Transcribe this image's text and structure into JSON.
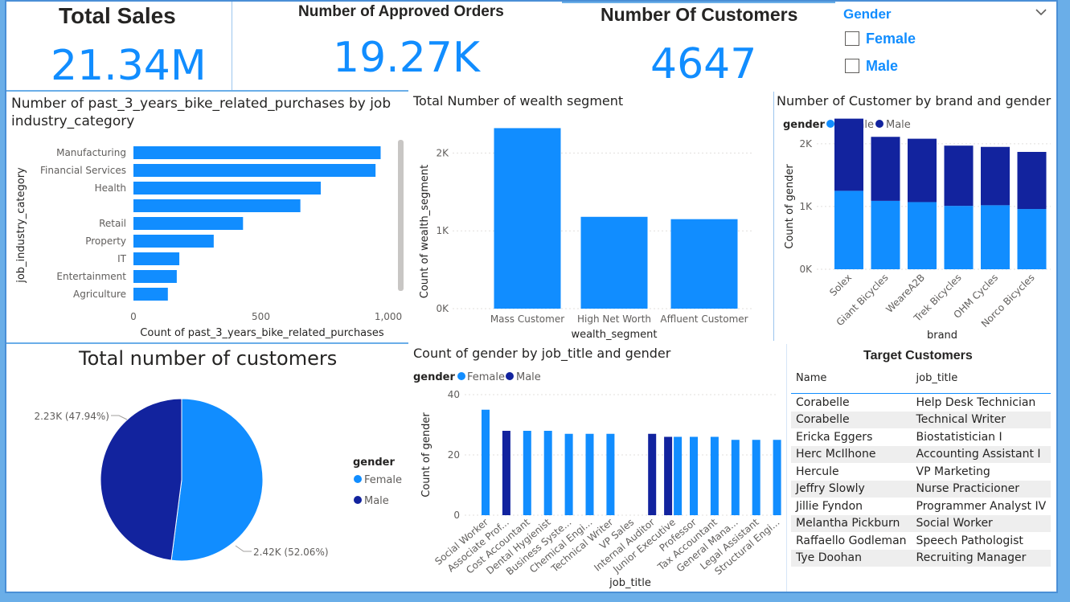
{
  "kpis": {
    "total_sales": {
      "title": "Total Sales",
      "value": "21.34M"
    },
    "approved_orders": {
      "title": "Number of Approved Orders",
      "value": "19.27K"
    },
    "customers": {
      "title": "Number Of Customers",
      "value": "4647"
    }
  },
  "slicer": {
    "title": "Gender",
    "options": [
      "Female",
      "Male"
    ],
    "selected": [],
    "chevron_icon": "chevron-down-icon"
  },
  "colors": {
    "female": "#118dff",
    "male": "#12239e",
    "accent": "#118dff"
  },
  "charts": {
    "industry": {
      "title": "Number of past_3_years_bike_related_purchases by job industry_category"
    },
    "wealth": {
      "title": "Total Number of wealth segment"
    },
    "brand": {
      "title": "Number of Customer by brand and gender",
      "legend_title": "gender"
    },
    "pie": {
      "title": "Total number of customers",
      "legend_title": "gender"
    },
    "jobtitle": {
      "title": "Count of gender by job_title and gender",
      "legend_title": "gender"
    }
  },
  "chart_data": [
    {
      "type": "bar",
      "orientation": "horizontal",
      "title": "Number of past_3_years_bike_related_purchases by job industry_category",
      "categories": [
        "Manufacturing",
        "Financial Services",
        "Health",
        "",
        "Retail",
        "Property",
        "IT",
        "Entertainment",
        "Agriculture"
      ],
      "values": [
        970,
        950,
        735,
        655,
        430,
        315,
        180,
        170,
        135
      ],
      "xlabel": "Count of past_3_years_bike_related_purchases",
      "ylabel": "job_industry_category",
      "xlim": [
        0,
        1000
      ],
      "xticks": [
        "0",
        "500",
        "1,000"
      ],
      "grid": false
    },
    {
      "type": "bar",
      "title": "Total Number of wealth segment",
      "categories": [
        "Mass Customer",
        "High Net Worth",
        "Affluent Customer"
      ],
      "values": [
        2320,
        1180,
        1150
      ],
      "xlabel": "wealth_segment",
      "ylabel": "Count of wealth_segment",
      "ylim": [
        0,
        2500
      ],
      "yticks": [
        "0K",
        "1K",
        "2K"
      ],
      "grid": true
    },
    {
      "type": "bar",
      "stacked": true,
      "title": "Number of Customer by brand and gender",
      "categories": [
        "Solex",
        "Giant Bicycles",
        "WeareA2B",
        "Trek Bicycles",
        "OHM Cycles",
        "Norco Bicycles"
      ],
      "series": [
        {
          "name": "Female",
          "values": [
            1250,
            1090,
            1070,
            1010,
            1020,
            960
          ]
        },
        {
          "name": "Male",
          "values": [
            1150,
            1020,
            1010,
            960,
            930,
            910
          ]
        }
      ],
      "xlabel": "brand",
      "ylabel": "Count of gender",
      "ylim": [
        0,
        2600
      ],
      "yticks": [
        "0K",
        "1K",
        "2K"
      ],
      "legend": "top-left",
      "grid": true
    },
    {
      "type": "pie",
      "title": "Total number of customers",
      "series": [
        {
          "name": "Female",
          "value": 2420,
          "label": "2.42K (52.06%)"
        },
        {
          "name": "Male",
          "value": 2230,
          "label": "2.23K (47.94%)"
        }
      ],
      "legend": "right"
    },
    {
      "type": "bar",
      "title": "Count of gender by job_title and gender",
      "categories": [
        "Social Worker",
        "Associate Prof...",
        "Cost Accountant",
        "Dental Hygienist",
        "Business Syste...",
        "Chemical Engi...",
        "Technical Writer",
        "VP Sales",
        "Internal Auditor",
        "Junior Executive",
        "Professor",
        "Tax Accountant",
        "General Mana...",
        "Legal Assistant",
        "Structural Engi..."
      ],
      "series": [
        {
          "name": "Female",
          "values": [
            35,
            0,
            28,
            28,
            27,
            27,
            27,
            0,
            0,
            26,
            26,
            26,
            25,
            25,
            25
          ]
        },
        {
          "name": "Male",
          "values": [
            0,
            28,
            0,
            0,
            0,
            0,
            0,
            0,
            27,
            26,
            0,
            0,
            0,
            0,
            0
          ]
        }
      ],
      "xlabel": "job_title",
      "ylabel": "Count of gender",
      "ylim": [
        0,
        40
      ],
      "yticks": [
        "0",
        "20",
        "40"
      ],
      "legend": "top-left",
      "grid": true
    },
    {
      "type": "table",
      "title": "Target Customers",
      "columns": [
        "Name",
        "job_title"
      ],
      "rows": [
        [
          "Corabelle",
          "Help Desk Technician"
        ],
        [
          "Corabelle",
          "Technical Writer"
        ],
        [
          "Ericka Eggers",
          "Biostatistician I"
        ],
        [
          "Herc McIlhone",
          "Accounting Assistant I"
        ],
        [
          "Hercule",
          "VP Marketing"
        ],
        [
          "Jeffry Slowly",
          "Nurse Practicioner"
        ],
        [
          "Jillie Fyndon",
          "Programmer Analyst IV"
        ],
        [
          "Melantha Pickburn",
          "Social Worker"
        ],
        [
          "Raffaello Godleman",
          "Speech Pathologist"
        ],
        [
          "Tye Doohan",
          "Recruiting Manager"
        ]
      ]
    }
  ]
}
